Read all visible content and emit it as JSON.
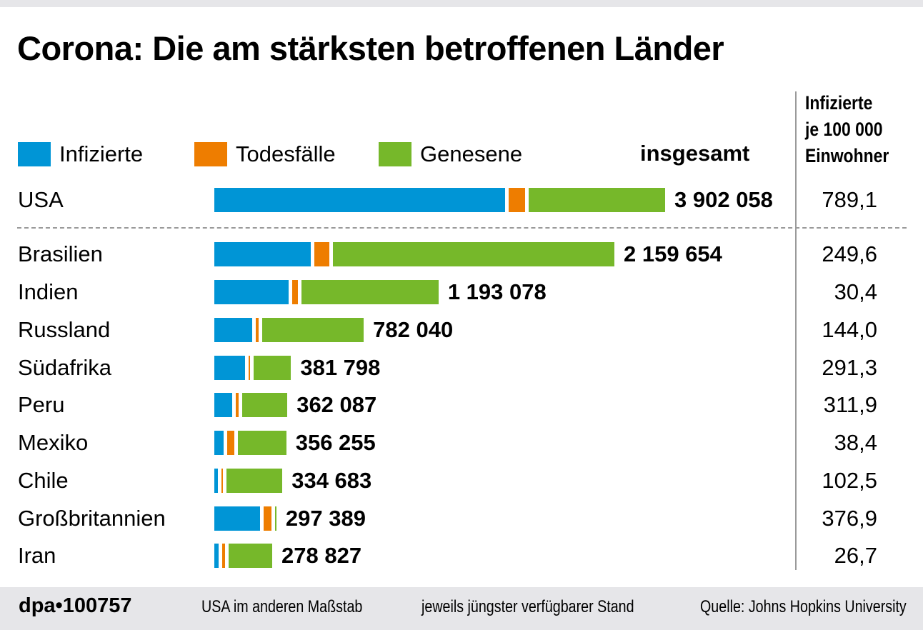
{
  "chart_data": {
    "type": "bar",
    "orientation": "horizontal",
    "stacked": true,
    "title": "Corona: Die am stärksten betroffenen Länder",
    "legend": [
      {
        "label": "Infizierte",
        "color": "#0095d6"
      },
      {
        "label": "Todesfälle",
        "color": "#ee7d00"
      },
      {
        "label": "Genesene",
        "color": "#76b82a"
      }
    ],
    "legend_placement": "top-left",
    "total_header": "insgesamt",
    "rate_header": [
      "Infizierte",
      "je 100 000",
      "Einwohner"
    ],
    "grid": false,
    "rows": [
      {
        "country": "USA",
        "total_label": "3 902 058",
        "total": 3902058,
        "infizierte": 2560000,
        "todesfaelle": 142000,
        "genesene": 1200058,
        "rate": "789,1",
        "separate_scale": true
      },
      {
        "country": "Brasilien",
        "total_label": "2 159 654",
        "total": 2159654,
        "infizierte": 530000,
        "todesfaelle": 81000,
        "genesene": 1548654,
        "rate": "249,6"
      },
      {
        "country": "Indien",
        "total_label": "1 193 078",
        "total": 1193078,
        "infizierte": 410000,
        "todesfaelle": 28000,
        "genesene": 755078,
        "rate": "30,4"
      },
      {
        "country": "Russland",
        "total_label": "782 040",
        "total": 782040,
        "infizierte": 210000,
        "todesfaelle": 12500,
        "genesene": 559540,
        "rate": "144,0"
      },
      {
        "country": "Südafrika",
        "total_label": "381 798",
        "total": 381798,
        "infizierte": 170000,
        "todesfaelle": 5400,
        "genesene": 206398,
        "rate": "291,3"
      },
      {
        "country": "Peru",
        "total_label": "362 087",
        "total": 362087,
        "infizierte": 100000,
        "todesfaelle": 13600,
        "genesene": 248487,
        "rate": "311,9"
      },
      {
        "country": "Mexiko",
        "total_label": "356 255",
        "total": 356255,
        "infizierte": 50000,
        "todesfaelle": 40400,
        "genesene": 265855,
        "rate": "38,4"
      },
      {
        "country": "Chile",
        "total_label": "334 683",
        "total": 334683,
        "infizierte": 20000,
        "todesfaelle": 8700,
        "genesene": 305983,
        "rate": "102,5"
      },
      {
        "country": "Großbritannien",
        "total_label": "297 389",
        "total": 297389,
        "infizierte": 250300,
        "todesfaelle": 45700,
        "genesene": 1389,
        "rate": "376,9"
      },
      {
        "country": "Iran",
        "total_label": "278 827",
        "total": 278827,
        "infizierte": 24000,
        "todesfaelle": 14400,
        "genesene": 240427,
        "rate": "26,7"
      }
    ]
  },
  "footer": {
    "agency": "dpa•100757",
    "note_scale": "USA im anderen Maßstab",
    "note_date": "jeweils jüngster verfügbarer Stand",
    "source": "Quelle: Johns Hopkins University"
  }
}
